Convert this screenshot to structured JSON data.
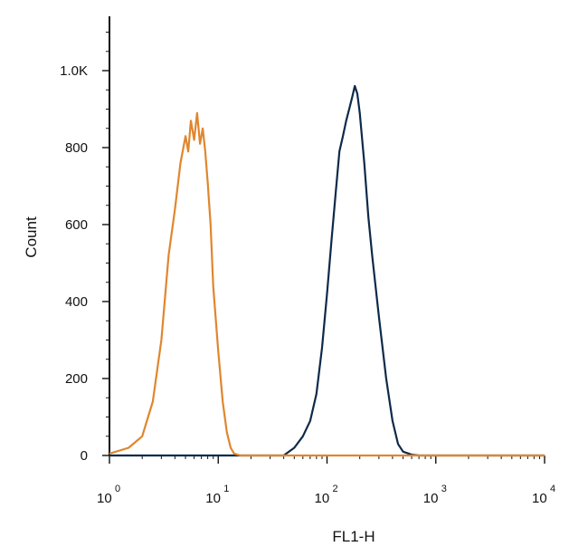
{
  "chart_data": {
    "type": "line",
    "title": "",
    "xlabel": "FL1-H",
    "ylabel": "Count",
    "x_scale": "log",
    "xlim": [
      1,
      10000
    ],
    "ylim": [
      0,
      1100
    ],
    "grid": false,
    "legend": "none",
    "y_ticks": [
      {
        "value": 0,
        "label": "0"
      },
      {
        "value": 200,
        "label": "200"
      },
      {
        "value": 400,
        "label": "400"
      },
      {
        "value": 600,
        "label": "600"
      },
      {
        "value": 800,
        "label": "800"
      },
      {
        "value": 1000,
        "label": "1.0K"
      }
    ],
    "x_ticks": [
      {
        "value": 1,
        "base": "10",
        "exp": "0"
      },
      {
        "value": 10,
        "base": "10",
        "exp": "1"
      },
      {
        "value": 100,
        "base": "10",
        "exp": "2"
      },
      {
        "value": 1000,
        "base": "10",
        "exp": "3"
      },
      {
        "value": 10000,
        "base": "10",
        "exp": "4"
      }
    ],
    "series": [
      {
        "color": "#0d2a4a",
        "x": [
          1.0,
          2.0,
          4.0,
          5.0,
          6.0,
          7.0,
          8.0,
          9.0,
          10.0,
          11.0,
          12.0,
          14.0,
          16.0,
          18.0,
          20.0,
          25.0,
          30.0,
          40.0,
          50.0,
          60.0,
          70.0,
          80.0,
          90.0,
          100,
          110,
          120,
          130,
          140,
          150,
          160,
          170,
          180,
          190,
          200,
          220,
          240,
          260,
          300,
          350,
          400,
          450,
          500,
          600,
          700,
          800,
          1000,
          2000,
          10000
        ],
        "y": [
          0,
          0,
          0,
          0,
          0,
          0,
          0,
          0,
          0,
          0,
          0,
          0,
          0,
          0,
          0,
          0,
          0,
          0,
          20,
          50,
          90,
          160,
          280,
          420,
          560,
          680,
          790,
          830,
          870,
          900,
          930,
          960,
          940,
          890,
          760,
          620,
          520,
          360,
          200,
          90,
          30,
          10,
          2,
          0,
          0,
          0,
          0,
          0
        ]
      },
      {
        "color": "#e0862e",
        "x": [
          1.0,
          1.5,
          2.0,
          2.5,
          3.0,
          3.5,
          4.0,
          4.5,
          5.0,
          5.3,
          5.6,
          6.0,
          6.4,
          6.8,
          7.2,
          7.6,
          8.0,
          8.5,
          9.0,
          10.0,
          11.0,
          12.0,
          13.0,
          14.0,
          16.0,
          18.0,
          20.0,
          22.0,
          24.0,
          30.0,
          100,
          1000,
          10000
        ],
        "y": [
          5,
          20,
          50,
          140,
          300,
          520,
          640,
          760,
          830,
          790,
          870,
          820,
          890,
          810,
          850,
          790,
          710,
          600,
          440,
          270,
          140,
          60,
          20,
          5,
          0,
          0,
          0,
          0,
          0,
          0,
          0,
          0,
          0
        ]
      }
    ]
  }
}
